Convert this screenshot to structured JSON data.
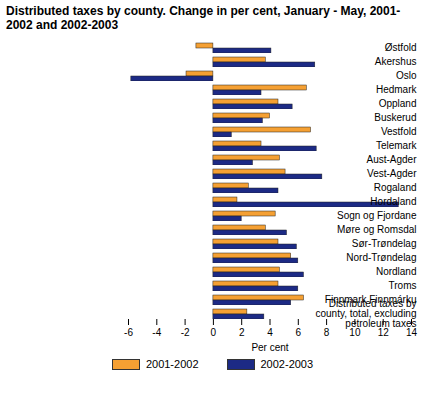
{
  "chart_data": {
    "type": "bar",
    "orientation": "horizontal",
    "title": "Distributed taxes by county. Change in per cent, January - May, 2001-2002 and 2002-2003",
    "xlabel": "Per cent",
    "categories": [
      "Østfold",
      "Akershus",
      "Oslo",
      "Hedmark",
      "Oppland",
      "Buskerud",
      "Vestfold",
      "Telemark",
      "Aust-Agder",
      "Vest-Agder",
      "Rogaland",
      "Hordaland",
      "Sogn og Fjordane",
      "Møre og Romsdal",
      "Sør-Trøndelag",
      "Nord-Trøndelag",
      "Nordland",
      "Troms",
      "Finnmark Finnmárku",
      "Distributed taxes by county, total, excluding petroleum taxes"
    ],
    "series": [
      {
        "name": "2001-2002",
        "color": "#f5a033",
        "values": [
          -1.2,
          3.7,
          -1.9,
          6.6,
          4.6,
          4.0,
          6.9,
          3.4,
          4.7,
          5.1,
          2.5,
          1.7,
          4.4,
          3.7,
          4.6,
          5.5,
          4.7,
          4.6,
          6.4,
          2.4
        ]
      },
      {
        "name": "2002-2003",
        "color": "#1c2a85",
        "values": [
          4.1,
          7.2,
          -5.8,
          3.4,
          5.6,
          3.5,
          1.3,
          7.3,
          2.8,
          7.7,
          4.6,
          13.1,
          2.0,
          5.2,
          5.9,
          6.0,
          6.4,
          6.0,
          5.5,
          3.6
        ]
      }
    ],
    "xlim": [
      -6,
      14
    ],
    "xticks": [
      -6,
      -4,
      -2,
      0,
      2,
      4,
      6,
      8,
      10,
      12,
      14
    ],
    "grid": false,
    "legend": "bottom"
  }
}
